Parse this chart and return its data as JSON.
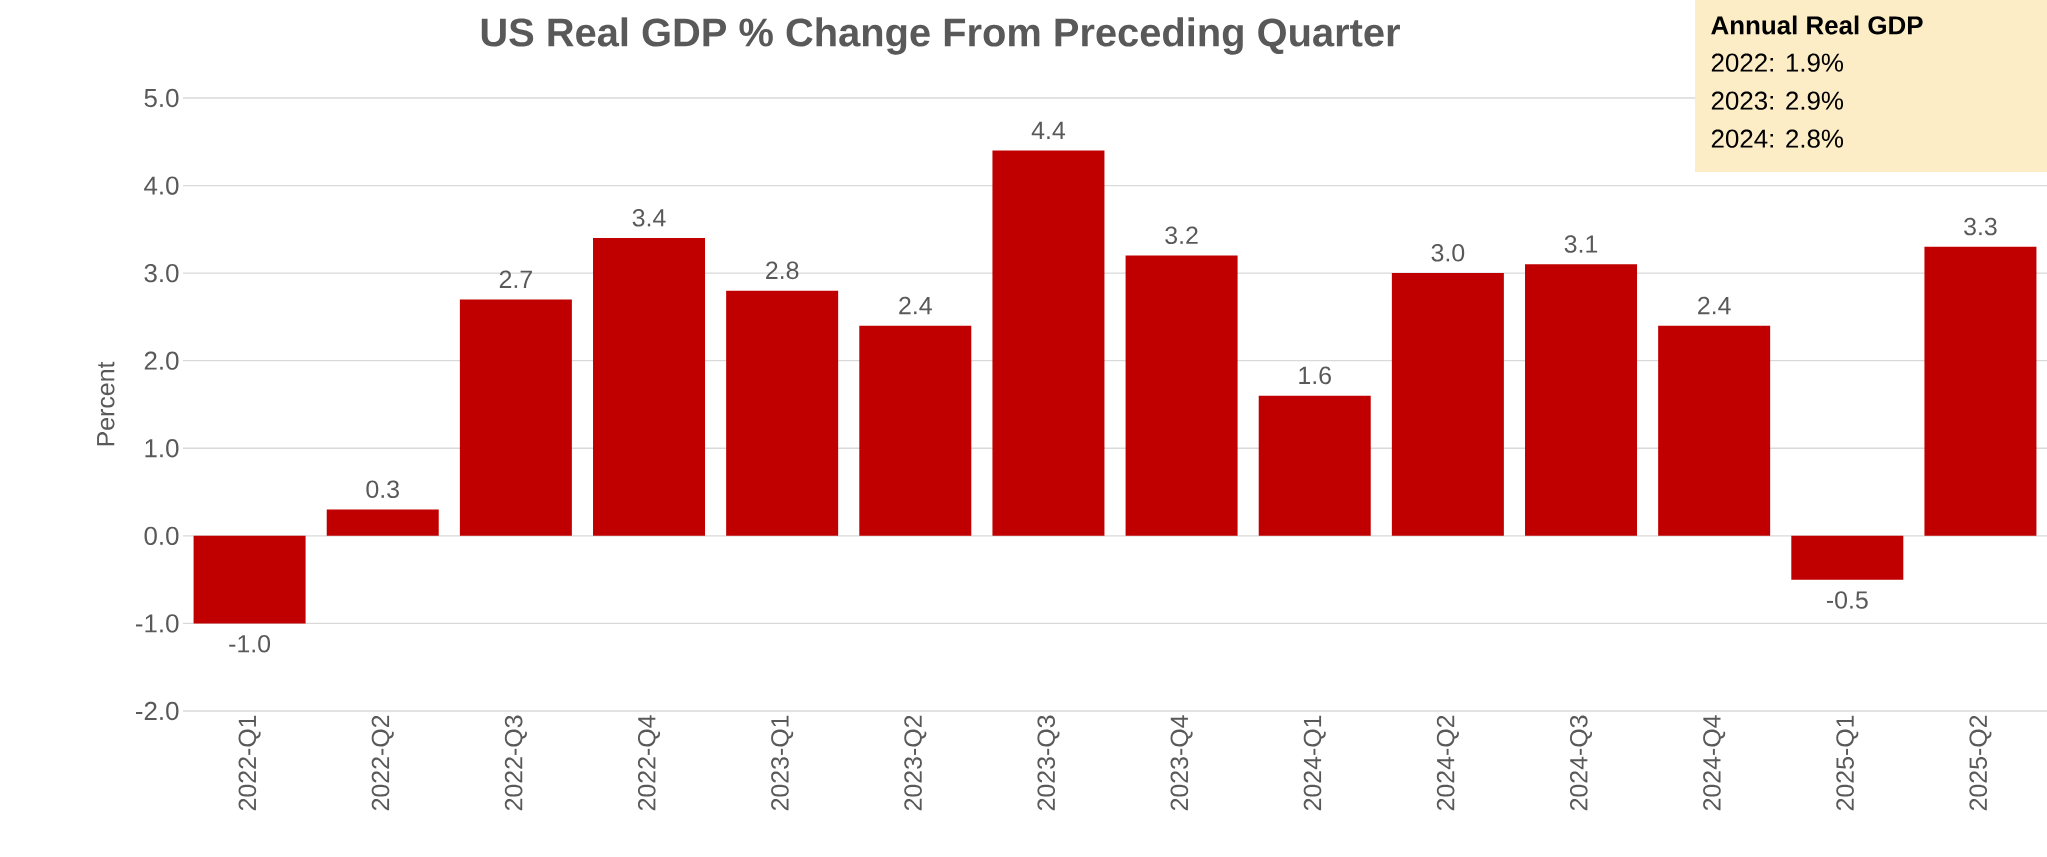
{
  "chart_data": {
    "type": "bar",
    "title": "US Real GDP % Change From Preceding Quarter",
    "ylabel": "Percent",
    "categories": [
      "2022-Q1",
      "2022-Q2",
      "2022-Q3",
      "2022-Q4",
      "2023-Q1",
      "2023-Q2",
      "2023-Q3",
      "2023-Q4",
      "2024-Q1",
      "2024-Q2",
      "2024-Q3",
      "2024-Q4",
      "2025-Q1",
      "2025-Q2"
    ],
    "values": [
      -1.0,
      0.3,
      2.7,
      3.4,
      2.8,
      2.4,
      4.4,
      3.2,
      1.6,
      3.0,
      3.1,
      2.4,
      -0.5,
      3.3
    ],
    "value_labels": [
      "-1.0",
      "0.3",
      "2.7",
      "3.4",
      "2.8",
      "2.4",
      "4.4",
      "3.2",
      "1.6",
      "3.0",
      "3.1",
      "2.4",
      "-0.5",
      "3.3"
    ],
    "color": "#c00000",
    "ylim": [
      -2,
      5
    ],
    "yticks": [
      {
        "value": -2,
        "label": "-2.0"
      },
      {
        "value": -1,
        "label": "-1.0"
      },
      {
        "value": 0,
        "label": "0.0"
      },
      {
        "value": 1,
        "label": "1.0"
      },
      {
        "value": 2,
        "label": "2.0"
      },
      {
        "value": 3,
        "label": "3.0"
      },
      {
        "value": 4,
        "label": "4.0"
      },
      {
        "value": 5,
        "label": "5.0"
      }
    ],
    "grid": "y",
    "annotations": [
      "Annual Real GDP",
      "2022: 1.9%",
      "2023: 2.9%",
      "2024: 2.8%"
    ]
  }
}
